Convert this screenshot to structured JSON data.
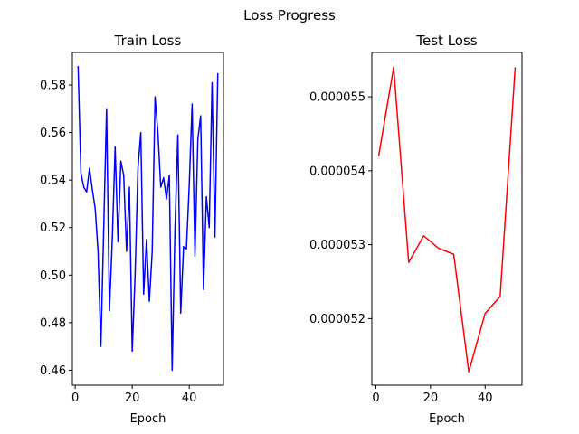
{
  "figure": {
    "title": "Loss Progress"
  },
  "chart_data": [
    {
      "type": "line",
      "title": "Train Loss",
      "xlabel": "Epoch",
      "ylabel": "",
      "color": "#0000ff",
      "x": [
        1,
        2,
        3,
        4,
        5,
        6,
        7,
        8,
        9,
        10,
        11,
        12,
        13,
        14,
        15,
        16,
        17,
        18,
        19,
        20,
        21,
        22,
        23,
        24,
        25,
        26,
        27,
        28,
        29,
        30,
        31,
        32,
        33,
        34,
        35,
        36,
        37,
        38,
        39,
        40,
        41,
        42,
        43,
        44,
        45,
        46,
        47,
        48,
        49,
        50
      ],
      "values": [
        0.588,
        0.543,
        0.537,
        0.535,
        0.545,
        0.536,
        0.528,
        0.51,
        0.47,
        0.52,
        0.57,
        0.485,
        0.515,
        0.554,
        0.514,
        0.548,
        0.542,
        0.51,
        0.537,
        0.468,
        0.5,
        0.545,
        0.56,
        0.492,
        0.515,
        0.489,
        0.51,
        0.575,
        0.56,
        0.537,
        0.541,
        0.532,
        0.542,
        0.46,
        0.52,
        0.559,
        0.484,
        0.512,
        0.511,
        0.538,
        0.572,
        0.508,
        0.557,
        0.567,
        0.494,
        0.533,
        0.52,
        0.581,
        0.516,
        0.585
      ],
      "xlim": [
        -1,
        52
      ],
      "ylim": [
        0.4537,
        0.5937
      ],
      "xticks": [
        0,
        20,
        40
      ],
      "yticks": [
        0.46,
        0.48,
        0.5,
        0.52,
        0.54,
        0.56,
        0.58
      ],
      "xtick_labels": [
        "0",
        "20",
        "40"
      ],
      "ytick_labels": [
        "0.46",
        "0.48",
        "0.50",
        "0.52",
        "0.54",
        "0.56",
        "0.58"
      ]
    },
    {
      "type": "line",
      "title": "Test Loss",
      "xlabel": "Epoch",
      "ylabel": "",
      "color": "#ff0000",
      "x": [
        1,
        6.5,
        12,
        17.5,
        23,
        28.5,
        34,
        40,
        45.5,
        51
      ],
      "values": [
        5.42e-05,
        5.54e-05,
        5.276e-05,
        5.312e-05,
        5.295e-05,
        5.287e-05,
        5.128e-05,
        5.207e-05,
        5.23e-05,
        5.54e-05
      ],
      "xlim": [
        -1.5,
        53.5
      ],
      "ylim": [
        5.11e-05,
        5.56e-05
      ],
      "xticks": [
        0,
        20,
        40
      ],
      "yticks": [
        5.2e-05,
        5.3e-05,
        5.4e-05,
        5.5e-05
      ],
      "xtick_labels": [
        "0",
        "20",
        "40"
      ],
      "ytick_labels": [
        "0.000052",
        "0.000053",
        "0.000054",
        "0.000055"
      ]
    }
  ]
}
